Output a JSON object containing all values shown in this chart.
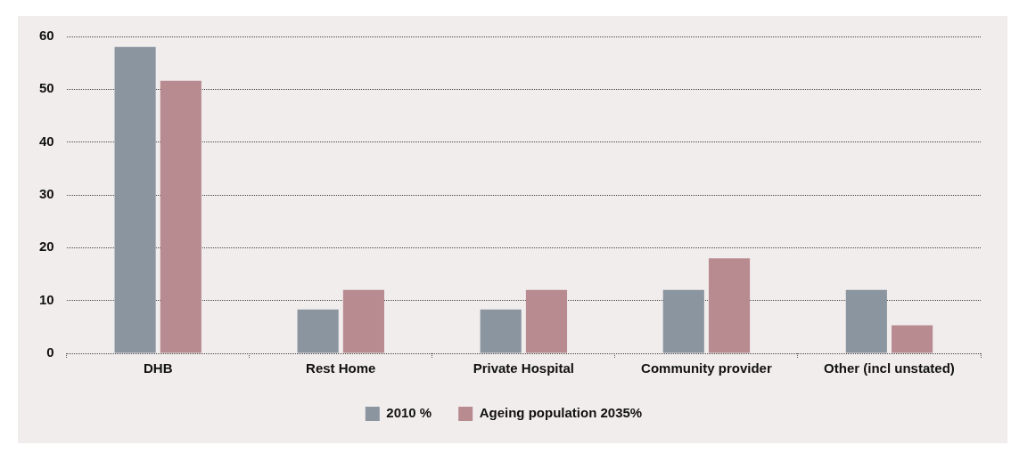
{
  "chart_data": {
    "type": "bar",
    "categories": [
      "DHB",
      "Rest Home",
      "Private Hospital",
      "Community provider",
      "Other (incl unstated)"
    ],
    "series": [
      {
        "name": "2010 %",
        "color": "#8a95a0",
        "values": [
          58,
          8.3,
          8.3,
          12,
          12
        ]
      },
      {
        "name": "Ageing population 2035%",
        "color": "#b88b91",
        "values": [
          51.6,
          12,
          12,
          18,
          5.3
        ]
      }
    ],
    "ylim": [
      0,
      60
    ],
    "yticks": [
      0,
      10,
      20,
      30,
      40,
      50,
      60
    ],
    "grid": "y",
    "legend": "bottom"
  }
}
